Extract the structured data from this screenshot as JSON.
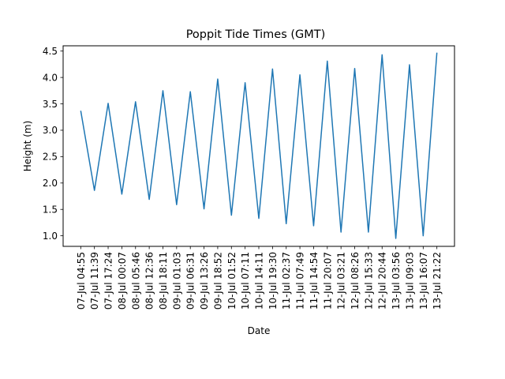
{
  "chart_data": {
    "type": "line",
    "title": "Poppit Tide Times (GMT)",
    "xlabel": "Date",
    "ylabel": "Height (m)",
    "categories": [
      "07-Jul 04:55",
      "07-Jul 11:39",
      "07-Jul 17:24",
      "08-Jul 00:07",
      "08-Jul 05:46",
      "08-Jul 12:36",
      "08-Jul 18:11",
      "09-Jul 01:03",
      "09-Jul 06:31",
      "09-Jul 13:26",
      "09-Jul 18:52",
      "10-Jul 01:52",
      "10-Jul 07:11",
      "10-Jul 14:11",
      "10-Jul 19:30",
      "11-Jul 02:37",
      "11-Jul 07:49",
      "11-Jul 14:54",
      "11-Jul 20:07",
      "12-Jul 03:21",
      "12-Jul 08:26",
      "12-Jul 15:33",
      "12-Jul 20:44",
      "13-Jul 03:56",
      "13-Jul 09:03",
      "13-Jul 16:07",
      "13-Jul 21:22"
    ],
    "series": [
      {
        "values": [
          3.37,
          1.86,
          3.51,
          1.79,
          3.54,
          1.69,
          3.75,
          1.59,
          3.73,
          1.51,
          3.97,
          1.39,
          3.9,
          1.33,
          4.16,
          1.23,
          4.05,
          1.19,
          4.31,
          1.07,
          4.17,
          1.07,
          4.43,
          0.95,
          4.24,
          1.0,
          4.47
        ]
      }
    ],
    "ylim": [
      0.8,
      4.6
    ],
    "yticks": [
      1.0,
      1.5,
      2.0,
      2.5,
      3.0,
      3.5,
      4.0,
      4.5
    ],
    "grid": false,
    "colors": {
      "line": "#1f77b4",
      "axes": "#000000"
    }
  }
}
